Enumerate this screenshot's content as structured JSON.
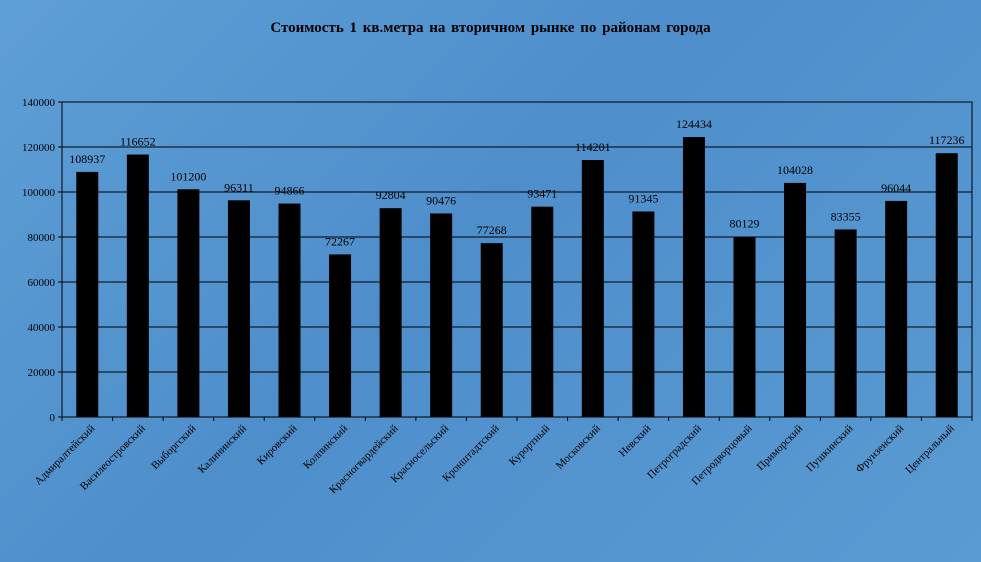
{
  "chart_data": {
    "type": "bar",
    "title": "Стоимость 1 кв.метра на вторичном  рынке  по районам  города",
    "xlabel": "",
    "ylabel": "",
    "ylim": [
      0,
      140000
    ],
    "yticks": [
      "0",
      "20000",
      "40000",
      "60000",
      "80000",
      "100000",
      "120000",
      "140000"
    ],
    "ytick_values": [
      0,
      20000,
      40000,
      60000,
      80000,
      100000,
      120000,
      140000
    ],
    "grid": true,
    "bar_color": "#000000",
    "categories": [
      "Адмиралтейский",
      "Василеостровский",
      "Выборгский",
      "Калининский",
      "Кировский",
      "Колпинский",
      "Красногвардейский",
      "Красносельский",
      "Кронштадтский",
      "Курортный",
      "Московский",
      "Невский",
      "Петроградский",
      "Петродворцовый",
      "Приморский",
      "Пушкинский",
      "Фрунзенский",
      "Центральный"
    ],
    "values": [
      108937,
      116652,
      101200,
      96311,
      94866,
      72267,
      92804,
      90476,
      77268,
      93471,
      114201,
      91345,
      124434,
      80129,
      104028,
      83355,
      96044,
      117236
    ],
    "value_labels": [
      "108937",
      "116652",
      "101200",
      "96311",
      "94866",
      "72267",
      "92804",
      "90476",
      "77268",
      "93471",
      "114201",
      "91345",
      "124434",
      "80129",
      "104028",
      "83355",
      "96044",
      "117236"
    ]
  }
}
